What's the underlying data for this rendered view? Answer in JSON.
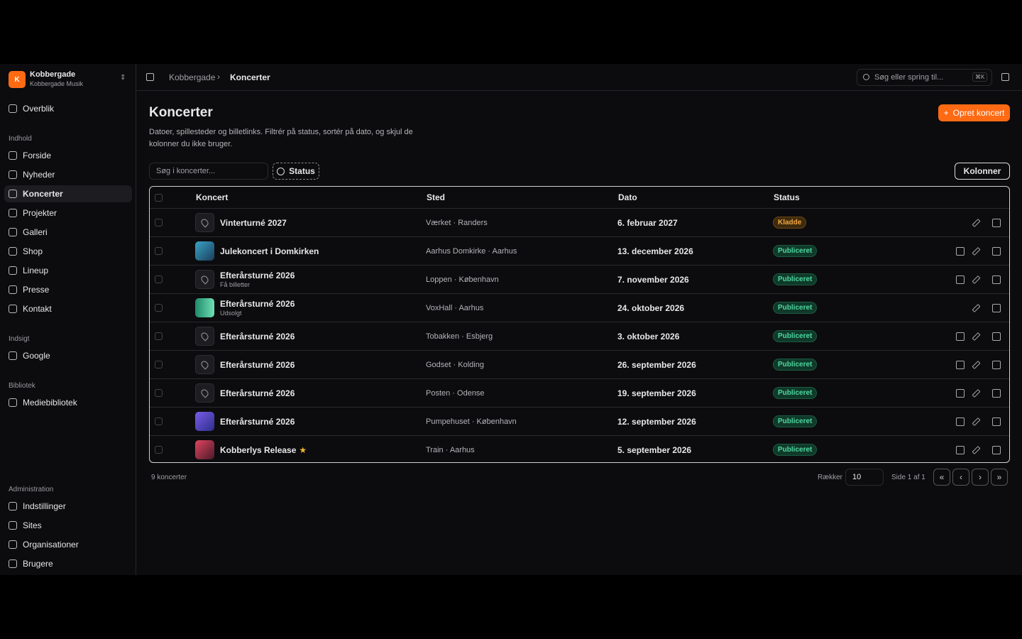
{
  "sidebar": {
    "org": {
      "initial": "K",
      "name": "Kobbergade",
      "subtitle": "Kobbergade Musik"
    },
    "top": [
      "Overblik"
    ],
    "groups": [
      {
        "label": "Indhold",
        "items": [
          "Forside",
          "Nyheder",
          "Koncerter",
          "Projekter",
          "Galleri",
          "Shop",
          "Lineup",
          "Presse",
          "Kontakt"
        ]
      },
      {
        "label": "Indsigt",
        "items": [
          "Google"
        ]
      },
      {
        "label": "Bibliotek",
        "items": [
          "Mediebibliotek"
        ]
      },
      {
        "label": "Administration",
        "items": [
          "Indstillinger",
          "Sites",
          "Organisationer",
          "Brugere"
        ]
      }
    ]
  },
  "header": {
    "breadcrumb": [
      "Kobbergade",
      "Koncerter"
    ],
    "search": "Søg eller spring til...",
    "shortcut": "⌘K"
  },
  "page": {
    "title": "Koncerter",
    "description": "Datoer, spillesteder og billetlinks. Filtrér på status, sortér på dato, og skjul de kolonner du ikke bruger.",
    "create_button": "Opret koncert",
    "search": "Søg i koncerter...",
    "filter": "Status",
    "columns_button": "Kolonner"
  },
  "table": {
    "columns": [
      "Koncert",
      "Sted",
      "Dato",
      "Status"
    ],
    "rows": [
      {
        "title": "Vinterturné 2027",
        "venue": "Værket · Randers",
        "date": "6. februar 2027",
        "status": "Kladde"
      },
      {
        "title": "Julekoncert i Domkirken",
        "venue": "Aarhus Domkirke · Aarhus",
        "date": "13. december 2026",
        "status": "Publiceret"
      },
      {
        "title": "Efterårsturné 2026",
        "subtitle": "Få billetter",
        "venue": "Loppen · København",
        "date": "7. november 2026",
        "status": "Publiceret"
      },
      {
        "title": "Efterårsturné 2026",
        "subtitle": "Udsolgt",
        "venue": "VoxHall · Aarhus",
        "date": "24. oktober 2026",
        "status": "Publiceret"
      },
      {
        "title": "Efterårsturné 2026",
        "venue": "Tobakken · Esbjerg",
        "date": "3. oktober 2026",
        "status": "Publiceret"
      },
      {
        "title": "Efterårsturné 2026",
        "venue": "Godset · Kolding",
        "date": "26. september 2026",
        "status": "Publiceret"
      },
      {
        "title": "Efterårsturné 2026",
        "venue": "Posten · Odense",
        "date": "19. september 2026",
        "status": "Publiceret"
      },
      {
        "title": "Efterårsturné 2026",
        "venue": "Pumpehuset · København",
        "date": "12. september 2026",
        "status": "Publiceret"
      },
      {
        "title": "Kobberlys Release",
        "venue": "Train · Aarhus",
        "date": "5. september 2026",
        "status": "Publiceret"
      }
    ]
  },
  "footer": {
    "count": "9 koncerter",
    "rows_label": "Rækker",
    "rows_value": "10",
    "page_info": "Side 1 af 1"
  }
}
